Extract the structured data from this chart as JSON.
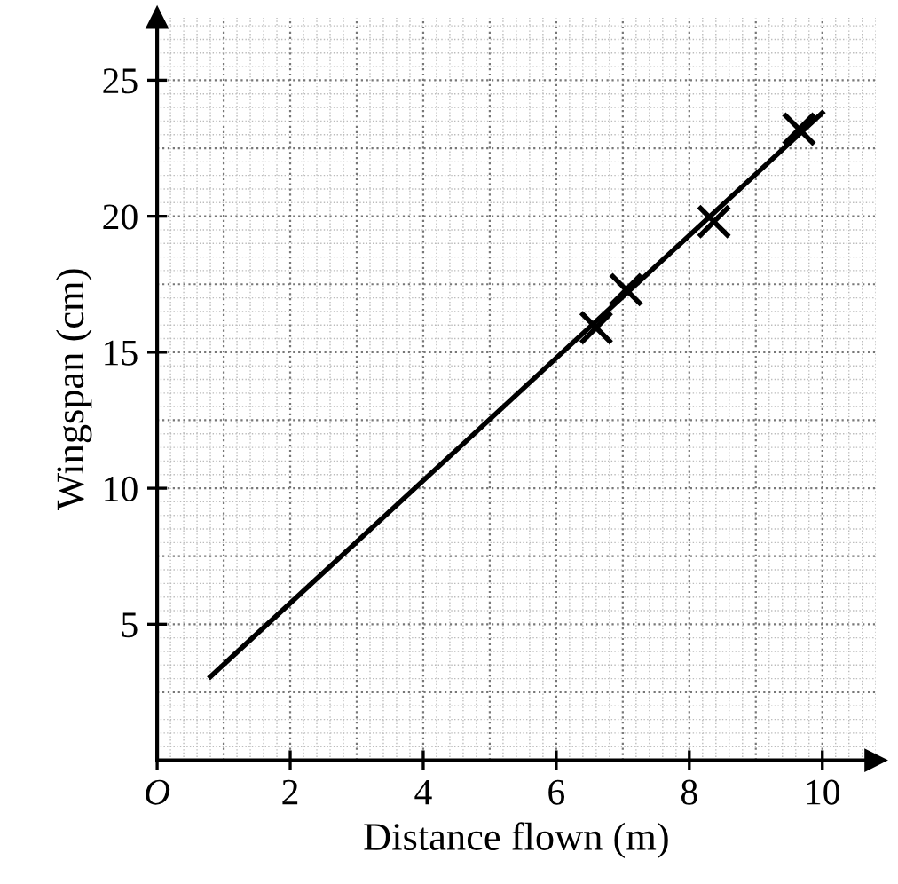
{
  "chart_data": {
    "type": "scatter",
    "xlabel": "Distance flown (m)",
    "ylabel": "Wingspan (cm)",
    "xlim": [
      0,
      10.8
    ],
    "ylim": [
      0,
      27.3
    ],
    "xticks": [
      {
        "value": 0,
        "label": "O"
      },
      2,
      4,
      6,
      8,
      10
    ],
    "yticks": [
      5,
      10,
      15,
      20,
      25
    ],
    "grid": true,
    "marker": "cross",
    "series": [
      {
        "color": "#000000",
        "x": [
          6.6,
          7.05,
          8.37,
          9.65
        ],
        "values": [
          15.9,
          17.3,
          19.8,
          23.2
        ]
      },
      {
        "type": "line",
        "color": "#000000",
        "x": [
          0.8,
          10.0
        ],
        "values": [
          3.07,
          23.8
        ],
        "marker": "none",
        "line_style": "solid"
      }
    ]
  }
}
